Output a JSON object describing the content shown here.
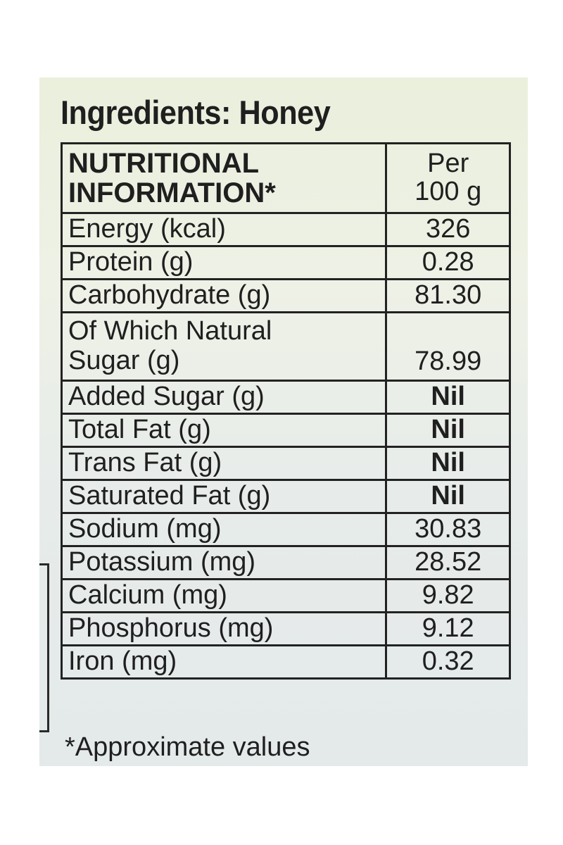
{
  "title": "Ingredients: Honey",
  "table": {
    "header": {
      "name_line1": "NUTRITIONAL",
      "name_line2": "INFORMATION*",
      "value_line1": "Per",
      "value_line2": "100 g"
    },
    "rows": [
      {
        "name": "Energy (kcal)",
        "value": "326"
      },
      {
        "name": "Protein (g)",
        "value": "0.28"
      },
      {
        "name": "Carbohydrate (g)",
        "value": "81.30"
      },
      {
        "name_line1": "Of Which Natural",
        "name_line2": "Sugar (g)",
        "value": "78.99"
      },
      {
        "name": "Added Sugar (g)",
        "value": "Nil"
      },
      {
        "name": "Total Fat (g)",
        "value": "Nil"
      },
      {
        "name": "Trans Fat (g)",
        "value": "Nil"
      },
      {
        "name": "Saturated Fat (g)",
        "value": "Nil"
      },
      {
        "name": "Sodium (mg)",
        "value": "30.83"
      },
      {
        "name": "Potassium (mg)",
        "value": "28.52"
      },
      {
        "name": "Calcium (mg)",
        "value": "9.82"
      },
      {
        "name": "Phosphorus (mg)",
        "value": "9.12"
      },
      {
        "name": "Iron (mg)",
        "value": "0.32"
      }
    ]
  },
  "footnote": "*Approximate values"
}
